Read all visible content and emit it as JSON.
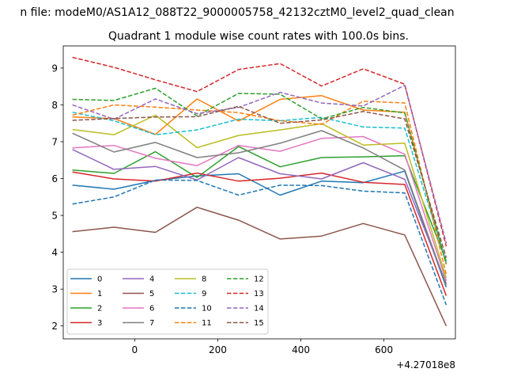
{
  "chart_data": {
    "type": "line",
    "title_line1": "n file: modeM0/AS1A12_088T22_9000005758_42132cztM0_level2_quad_clean",
    "title": "Quadrant 1 module wise count rates with 100.0s bins.",
    "xlabel": "",
    "ylabel": "",
    "x_offset_label": "+4.27018e8",
    "x": [
      -150,
      -50,
      50,
      150,
      250,
      350,
      450,
      550,
      650,
      750
    ],
    "xlim": [
      -172,
      772
    ],
    "ylim": [
      1.65,
      9.6
    ],
    "xticks": [
      0,
      200,
      400,
      600
    ],
    "yticks": [
      2,
      3,
      4,
      5,
      6,
      7,
      8,
      9
    ],
    "grid": false,
    "legend_position": "lower-left",
    "series": [
      {
        "name": "0",
        "color": "#1f77b4",
        "dashed": false,
        "values": [
          5.82,
          5.71,
          5.95,
          6.07,
          6.13,
          5.55,
          5.93,
          5.89,
          6.2,
          3.05
        ]
      },
      {
        "name": "1",
        "color": "#ff7f0e",
        "dashed": false,
        "values": [
          7.67,
          7.63,
          7.2,
          8.16,
          7.56,
          8.15,
          8.25,
          7.86,
          7.8,
          3.67
        ]
      },
      {
        "name": "2",
        "color": "#2ca02c",
        "dashed": false,
        "values": [
          6.23,
          6.14,
          6.73,
          6.03,
          6.87,
          6.32,
          6.57,
          6.59,
          6.62,
          3.77
        ]
      },
      {
        "name": "3",
        "color": "#d62728",
        "dashed": false,
        "values": [
          6.18,
          5.99,
          5.93,
          6.15,
          5.93,
          6.01,
          6.15,
          5.9,
          5.84,
          2.82
        ]
      },
      {
        "name": "4",
        "color": "#9467bd",
        "dashed": false,
        "values": [
          6.79,
          6.25,
          6.33,
          5.96,
          6.57,
          6.13,
          5.99,
          6.43,
          5.98,
          3.15
        ]
      },
      {
        "name": "5",
        "color": "#8c564b",
        "dashed": false,
        "values": [
          4.56,
          4.68,
          4.54,
          5.22,
          4.87,
          4.36,
          4.44,
          4.78,
          4.47,
          2.0
        ]
      },
      {
        "name": "6",
        "color": "#e377c2",
        "dashed": false,
        "values": [
          6.83,
          6.9,
          6.55,
          6.35,
          6.9,
          6.74,
          7.09,
          7.14,
          6.66,
          3.22
        ]
      },
      {
        "name": "7",
        "color": "#7f7f7f",
        "dashed": false,
        "values": [
          7.23,
          6.72,
          6.98,
          6.57,
          6.7,
          6.96,
          7.3,
          6.83,
          6.23,
          3.1
        ]
      },
      {
        "name": "8",
        "color": "#bcbd22",
        "dashed": false,
        "values": [
          7.33,
          7.19,
          7.72,
          6.84,
          7.17,
          7.32,
          7.49,
          6.91,
          6.96,
          3.3
        ]
      },
      {
        "name": "9",
        "color": "#17becf",
        "dashed": true,
        "values": [
          7.8,
          7.57,
          7.19,
          7.32,
          7.61,
          7.57,
          7.66,
          7.4,
          7.37,
          3.73
        ]
      },
      {
        "name": "10",
        "color": "#1f77b4",
        "dashed": true,
        "values": [
          5.31,
          5.5,
          5.96,
          5.95,
          5.55,
          5.82,
          5.81,
          5.66,
          5.61,
          2.57
        ]
      },
      {
        "name": "11",
        "color": "#ff7f0e",
        "dashed": true,
        "values": [
          7.72,
          8.0,
          7.94,
          7.86,
          7.79,
          7.57,
          7.47,
          8.1,
          8.05,
          3.4
        ]
      },
      {
        "name": "12",
        "color": "#2ca02c",
        "dashed": true,
        "values": [
          8.15,
          8.12,
          8.45,
          7.7,
          8.31,
          8.29,
          7.62,
          7.93,
          7.78,
          3.68
        ]
      },
      {
        "name": "13",
        "color": "#d62728",
        "dashed": true,
        "values": [
          9.29,
          9.02,
          8.68,
          8.36,
          8.96,
          9.12,
          8.51,
          8.98,
          8.56,
          4.16
        ]
      },
      {
        "name": "14",
        "color": "#9467bd",
        "dashed": true,
        "values": [
          8.0,
          7.61,
          8.16,
          7.76,
          7.93,
          8.34,
          8.05,
          7.97,
          8.53,
          4.25
        ]
      },
      {
        "name": "15",
        "color": "#8c564b",
        "dashed": true,
        "values": [
          7.58,
          7.63,
          7.67,
          7.68,
          7.96,
          7.5,
          7.59,
          7.82,
          7.62,
          3.85
        ]
      }
    ]
  }
}
